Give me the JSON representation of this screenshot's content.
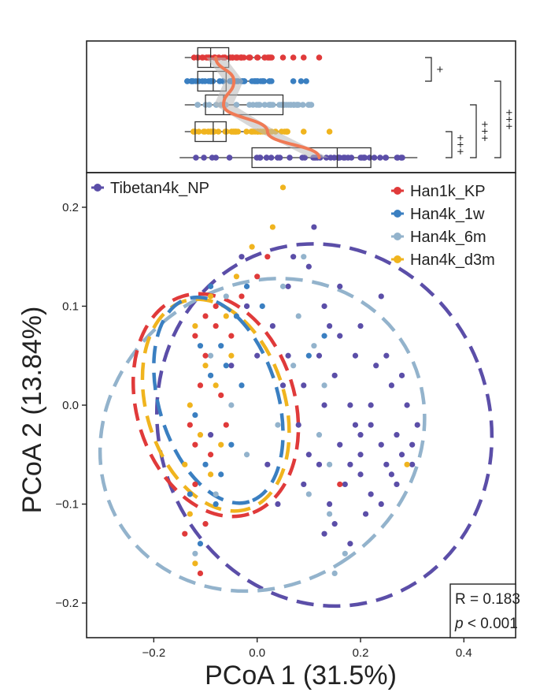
{
  "chart_data": [
    {
      "type": "boxplot",
      "panel": "top-marginal",
      "axis": "PCoA 1",
      "series": [
        {
          "name": "Han1k_KP",
          "color": "#e03a3a",
          "whisker": [
            -0.14,
            0.03
          ],
          "q1": -0.115,
          "median": -0.09,
          "q3": -0.055,
          "outliers": [
            0.05,
            0.07,
            0.09,
            0.12
          ]
        },
        {
          "name": "Han4k_1w",
          "color": "#3a7fc1",
          "whisker": [
            -0.14,
            0.03
          ],
          "q1": -0.115,
          "median": -0.085,
          "q3": -0.06,
          "outliers": [
            0.07,
            0.085,
            0.095
          ]
        },
        {
          "name": "Han4k_6m",
          "color": "#93b3cc",
          "whisker": [
            -0.14,
            0.11
          ],
          "q1": -0.1,
          "median": -0.065,
          "q3": 0.05,
          "outliers": [
            0.08,
            0.1
          ]
        },
        {
          "name": "Han4k_d3m",
          "color": "#f0b41e",
          "whisker": [
            -0.14,
            0.06
          ],
          "q1": -0.12,
          "median": -0.085,
          "q3": -0.06,
          "outliers": [
            0.09,
            0.14
          ]
        },
        {
          "name": "Tibetan4k_NP",
          "color": "#5b4ea8",
          "whisker": [
            -0.15,
            0.31
          ],
          "q1": -0.01,
          "median": 0.155,
          "q3": 0.22,
          "outliers": []
        }
      ],
      "trend_line": {
        "color": "#f07a55",
        "x": [
          -0.08,
          -0.045,
          -0.065,
          0.02,
          0.12
        ]
      },
      "significance": [
        {
          "label": "+",
          "pair": [
            "Han1k_KP",
            "Han4k_1w"
          ]
        },
        {
          "label": "+++",
          "pair": [
            "Han4k_d3m",
            "Tibetan4k_NP"
          ]
        },
        {
          "label": "+++",
          "pair": [
            "Han4k_6m",
            "Tibetan4k_NP"
          ]
        },
        {
          "label": "+++",
          "pair": [
            "Han4k_1w",
            "Tibetan4k_NP"
          ]
        }
      ]
    },
    {
      "type": "scatter",
      "panel": "main",
      "xlabel": "PCoA 1 (31.5%)",
      "ylabel": "PCoA 2 (13.84%)",
      "xlim": [
        -0.33,
        0.5
      ],
      "ylim": [
        -0.235,
        0.235
      ],
      "xticks": [
        -0.2,
        0.0,
        0.2,
        0.4
      ],
      "xtick_labels": [
        "−0.2",
        "0.0",
        "0.2",
        "0.4"
      ],
      "yticks": [
        0.2,
        0.1,
        0.0,
        -0.1,
        -0.2
      ],
      "ytick_labels": [
        "0.2",
        "0.1",
        "0.0",
        "−0.1",
        "−0.2"
      ],
      "legend": [
        {
          "name": "Tibetan4k_NP",
          "color": "#5b4ea8",
          "position": "top-left"
        },
        {
          "name": "Han1k_KP",
          "color": "#e03a3a",
          "position": "top-right"
        },
        {
          "name": "Han4k_1w",
          "color": "#3a7fc1",
          "position": "top-right"
        },
        {
          "name": "Han4k_6m",
          "color": "#93b3cc",
          "position": "top-right"
        },
        {
          "name": "Han4k_d3m",
          "color": "#f0b41e",
          "position": "top-right"
        }
      ],
      "ellipses": [
        {
          "series": "Tibetan4k_NP",
          "color": "#5b4ea8",
          "cx": 0.13,
          "cy": -0.02,
          "rx": 0.32,
          "ry": 0.185,
          "angle_deg": -20
        },
        {
          "series": "Han4k_6m",
          "color": "#93b3cc",
          "cx": 0.01,
          "cy": -0.03,
          "rx": 0.29,
          "ry": 0.17,
          "angle_deg": 55
        },
        {
          "series": "Han1k_KP",
          "color": "#e03a3a",
          "cx": -0.08,
          "cy": 0.0,
          "rx": 0.22,
          "ry": 0.08,
          "angle_deg": 73
        },
        {
          "series": "Han4k_d3m",
          "color": "#f0b41e",
          "cx": -0.08,
          "cy": 0.0,
          "rx": 0.21,
          "ry": 0.07,
          "angle_deg": 73
        },
        {
          "series": "Han4k_1w",
          "color": "#3a7fc1",
          "cx": -0.075,
          "cy": 0.005,
          "rx": 0.205,
          "ry": 0.06,
          "angle_deg": 73
        }
      ],
      "series": [
        {
          "name": "Tibetan4k_NP",
          "color": "#5b4ea8",
          "points": [
            [
              0.1,
              0.14
            ],
            [
              0.13,
              0.1
            ],
            [
              0.16,
              0.12
            ],
            [
              0.2,
              0.08
            ],
            [
              0.24,
              0.11
            ],
            [
              0.15,
              0.03
            ],
            [
              0.18,
              0.0
            ],
            [
              0.22,
              -0.02
            ],
            [
              0.26,
              0.02
            ],
            [
              0.28,
              -0.05
            ],
            [
              0.3,
              -0.04
            ],
            [
              0.25,
              -0.06
            ],
            [
              0.2,
              -0.05
            ],
            [
              0.17,
              -0.08
            ],
            [
              0.14,
              -0.1
            ],
            [
              0.22,
              -0.09
            ],
            [
              0.27,
              -0.08
            ],
            [
              0.31,
              -0.02
            ],
            [
              0.12,
              0.05
            ],
            [
              0.08,
              -0.02
            ],
            [
              0.05,
              0.02
            ],
            [
              0.1,
              -0.05
            ],
            [
              0.19,
              0.05
            ],
            [
              0.23,
              0.04
            ],
            [
              0.29,
              0.0
            ],
            [
              0.16,
              -0.04
            ],
            [
              0.21,
              -0.11
            ],
            [
              0.13,
              -0.13
            ],
            [
              0.09,
              -0.08
            ],
            [
              0.03,
              0.08
            ],
            [
              0.0,
              0.05
            ],
            [
              -0.02,
              0.1
            ],
            [
              0.06,
              0.12
            ],
            [
              0.11,
              0.18
            ],
            [
              0.2,
              -0.03
            ],
            [
              0.24,
              -0.04
            ],
            [
              0.27,
              -0.03
            ],
            [
              0.18,
              -0.06
            ],
            [
              0.15,
              -0.12
            ],
            [
              0.18,
              -0.14
            ],
            [
              -0.03,
              0.15
            ],
            [
              0.02,
              -0.06
            ],
            [
              0.25,
              0.05
            ],
            [
              0.14,
              0.08
            ],
            [
              0.07,
              0.15
            ],
            [
              0.26,
              -0.07
            ],
            [
              0.22,
              0.0
            ],
            [
              0.3,
              -0.06
            ],
            [
              0.16,
              0.07
            ],
            [
              0.19,
              -0.02
            ],
            [
              0.12,
              -0.06
            ],
            [
              0.09,
              0.02
            ],
            [
              -0.05,
              0.04
            ],
            [
              -0.09,
              -0.03
            ],
            [
              0.04,
              -0.1
            ],
            [
              0.28,
              0.03
            ],
            [
              0.24,
              -0.1
            ],
            [
              0.2,
              -0.07
            ],
            [
              0.13,
              0.0
            ],
            [
              0.06,
              0.05
            ]
          ]
        },
        {
          "name": "Han4k_6m",
          "color": "#93b3cc",
          "points": [
            [
              0.05,
              0.12
            ],
            [
              0.08,
              0.09
            ],
            [
              0.11,
              0.06
            ],
            [
              0.13,
              0.02
            ],
            [
              0.12,
              -0.03
            ],
            [
              0.1,
              -0.09
            ],
            [
              0.14,
              -0.11
            ],
            [
              0.17,
              -0.15
            ],
            [
              0.15,
              -0.17
            ],
            [
              -0.02,
              -0.05
            ],
            [
              0.04,
              -0.02
            ],
            [
              0.07,
              0.04
            ],
            [
              -0.1,
              -0.12
            ],
            [
              -0.12,
              -0.15
            ],
            [
              -0.08,
              -0.09
            ],
            [
              -0.05,
              0.0
            ],
            [
              -0.09,
              0.05
            ],
            [
              -0.06,
              0.11
            ],
            [
              0.09,
              0.15
            ],
            [
              0.14,
              -0.06
            ]
          ]
        },
        {
          "name": "Han1k_KP",
          "color": "#e03a3a",
          "points": [
            [
              -0.12,
              0.07
            ],
            [
              -0.1,
              0.05
            ],
            [
              -0.08,
              0.08
            ],
            [
              -0.11,
              0.02
            ],
            [
              -0.13,
              -0.02
            ],
            [
              -0.09,
              -0.05
            ],
            [
              -0.12,
              -0.08
            ],
            [
              -0.1,
              -0.12
            ],
            [
              -0.07,
              0.01
            ],
            [
              -0.05,
              0.07
            ],
            [
              -0.03,
              0.11
            ],
            [
              0.0,
              0.13
            ],
            [
              0.02,
              0.15
            ],
            [
              -0.14,
              -0.13
            ],
            [
              -0.11,
              -0.17
            ],
            [
              -0.06,
              -0.02
            ],
            [
              -0.08,
              0.1
            ],
            [
              -0.1,
              0.09
            ],
            [
              -0.12,
              -0.04
            ],
            [
              0.16,
              -0.08
            ]
          ]
        },
        {
          "name": "Han4k_1w",
          "color": "#3a7fc1",
          "points": [
            [
              -0.11,
              0.06
            ],
            [
              -0.09,
              0.03
            ],
            [
              -0.07,
              0.06
            ],
            [
              -0.12,
              -0.01
            ],
            [
              -0.1,
              -0.06
            ],
            [
              -0.08,
              -0.1
            ],
            [
              -0.06,
              0.04
            ],
            [
              -0.04,
              0.09
            ],
            [
              -0.02,
              0.12
            ],
            [
              0.01,
              0.1
            ],
            [
              -0.13,
              -0.09
            ],
            [
              -0.11,
              -0.14
            ],
            [
              -0.05,
              -0.04
            ],
            [
              -0.03,
              0.02
            ],
            [
              0.13,
              0.07
            ],
            [
              0.1,
              0.05
            ],
            [
              -0.09,
              0.12
            ],
            [
              -0.07,
              -0.07
            ]
          ]
        },
        {
          "name": "Han4k_d3m",
          "color": "#f0b41e",
          "points": [
            [
              -0.12,
              0.08
            ],
            [
              -0.1,
              0.04
            ],
            [
              -0.13,
              0.0
            ],
            [
              -0.11,
              -0.03
            ],
            [
              -0.09,
              -0.07
            ],
            [
              -0.13,
              -0.11
            ],
            [
              -0.12,
              -0.16
            ],
            [
              -0.08,
              0.02
            ],
            [
              -0.06,
              0.09
            ],
            [
              -0.04,
              0.13
            ],
            [
              -0.01,
              0.16
            ],
            [
              0.03,
              0.18
            ],
            [
              -0.14,
              -0.06
            ],
            [
              -0.07,
              -0.04
            ],
            [
              -0.09,
              0.11
            ],
            [
              0.05,
              0.22
            ],
            [
              0.29,
              -0.06
            ],
            [
              -0.05,
              0.05
            ]
          ]
        }
      ],
      "annotation": {
        "r_text": "R = 0.183",
        "p_italic": "p",
        "p_rest": " < 0.001"
      }
    }
  ]
}
